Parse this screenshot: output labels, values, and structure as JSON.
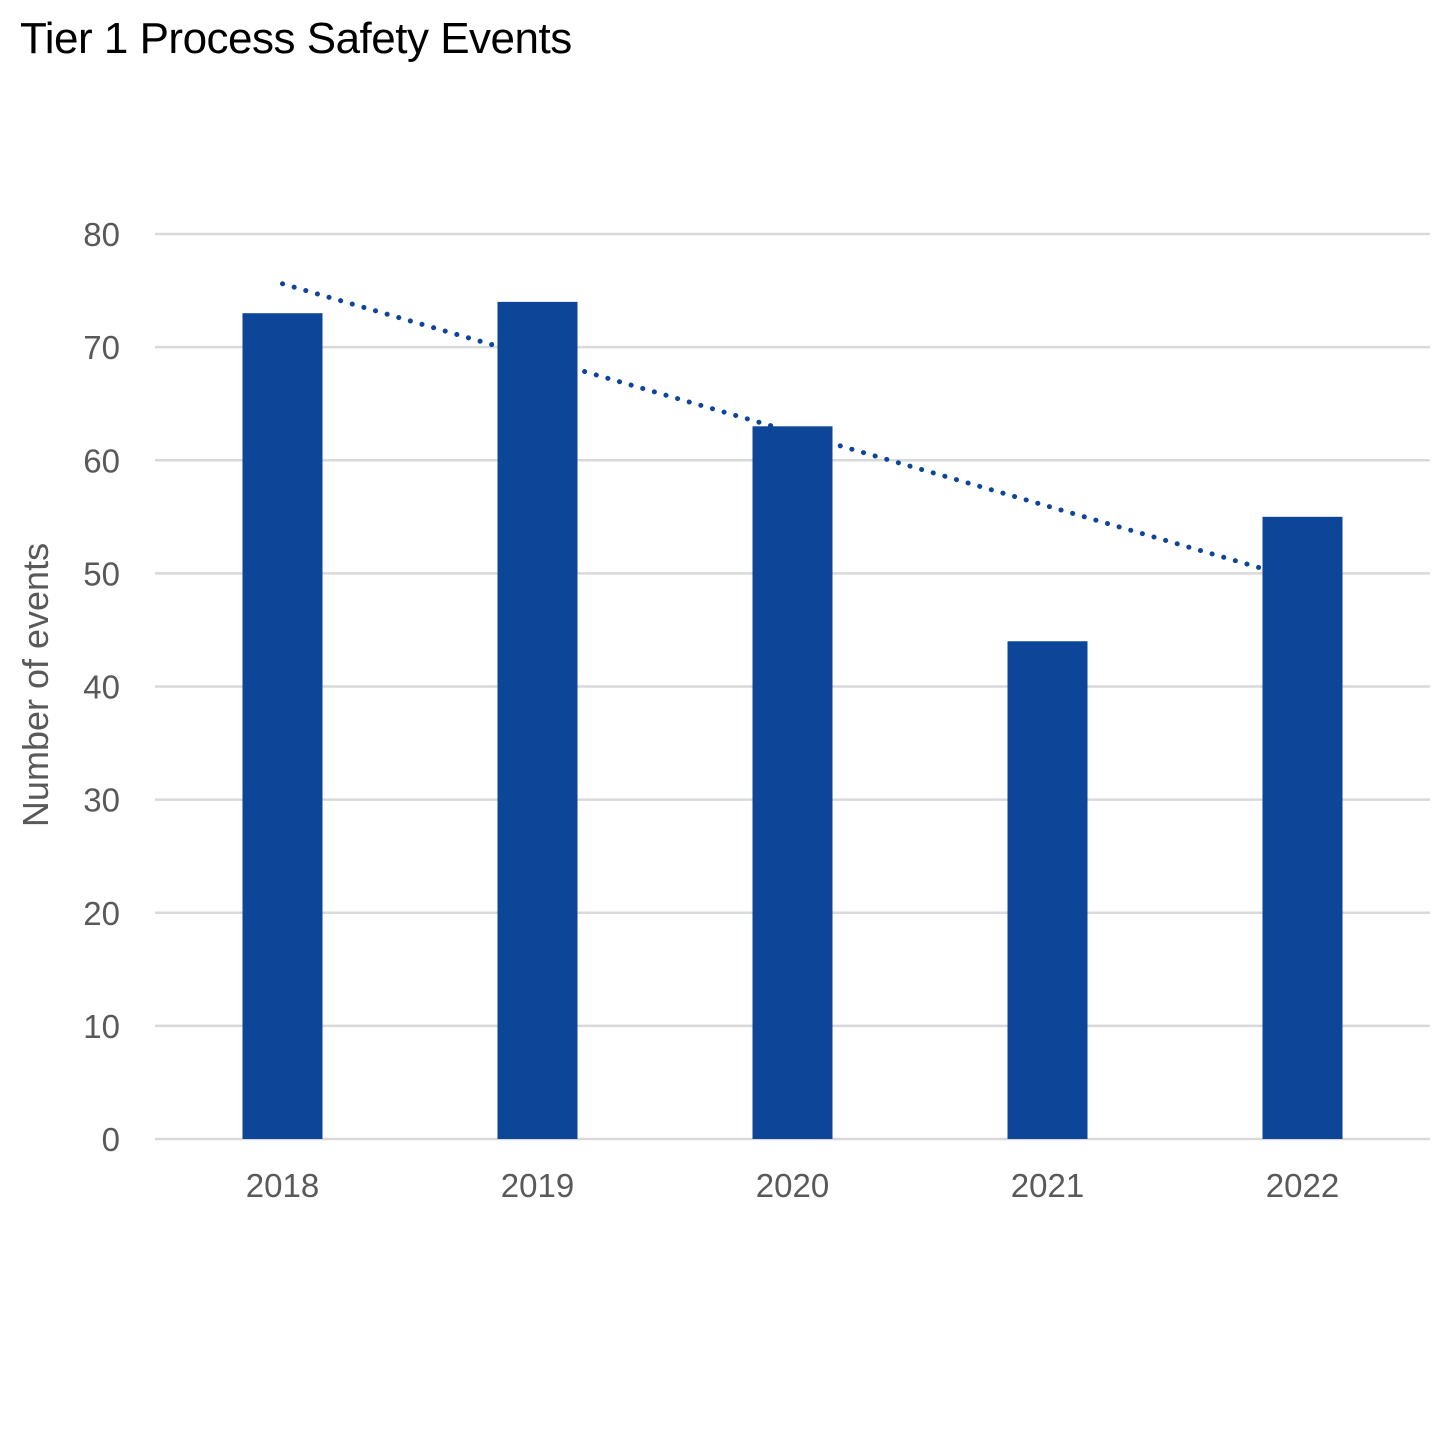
{
  "chart_data": {
    "type": "bar",
    "title": "Tier 1 Process Safety Events",
    "xlabel": "",
    "ylabel": "Number of events",
    "categories": [
      "2018",
      "2019",
      "2020",
      "2021",
      "2022"
    ],
    "values": [
      73,
      74,
      63,
      44,
      55
    ],
    "ylim": [
      0,
      80
    ],
    "yticks": [
      0,
      10,
      20,
      30,
      40,
      50,
      60,
      70,
      80
    ],
    "grid": true,
    "trendline": {
      "type": "linear",
      "style": "dotted",
      "start": 75.6,
      "end": 49.4
    },
    "colors": {
      "bar": "#0d4699",
      "trend": "#0d4699",
      "grid": "#d9d9d9",
      "text": "#595959"
    }
  }
}
